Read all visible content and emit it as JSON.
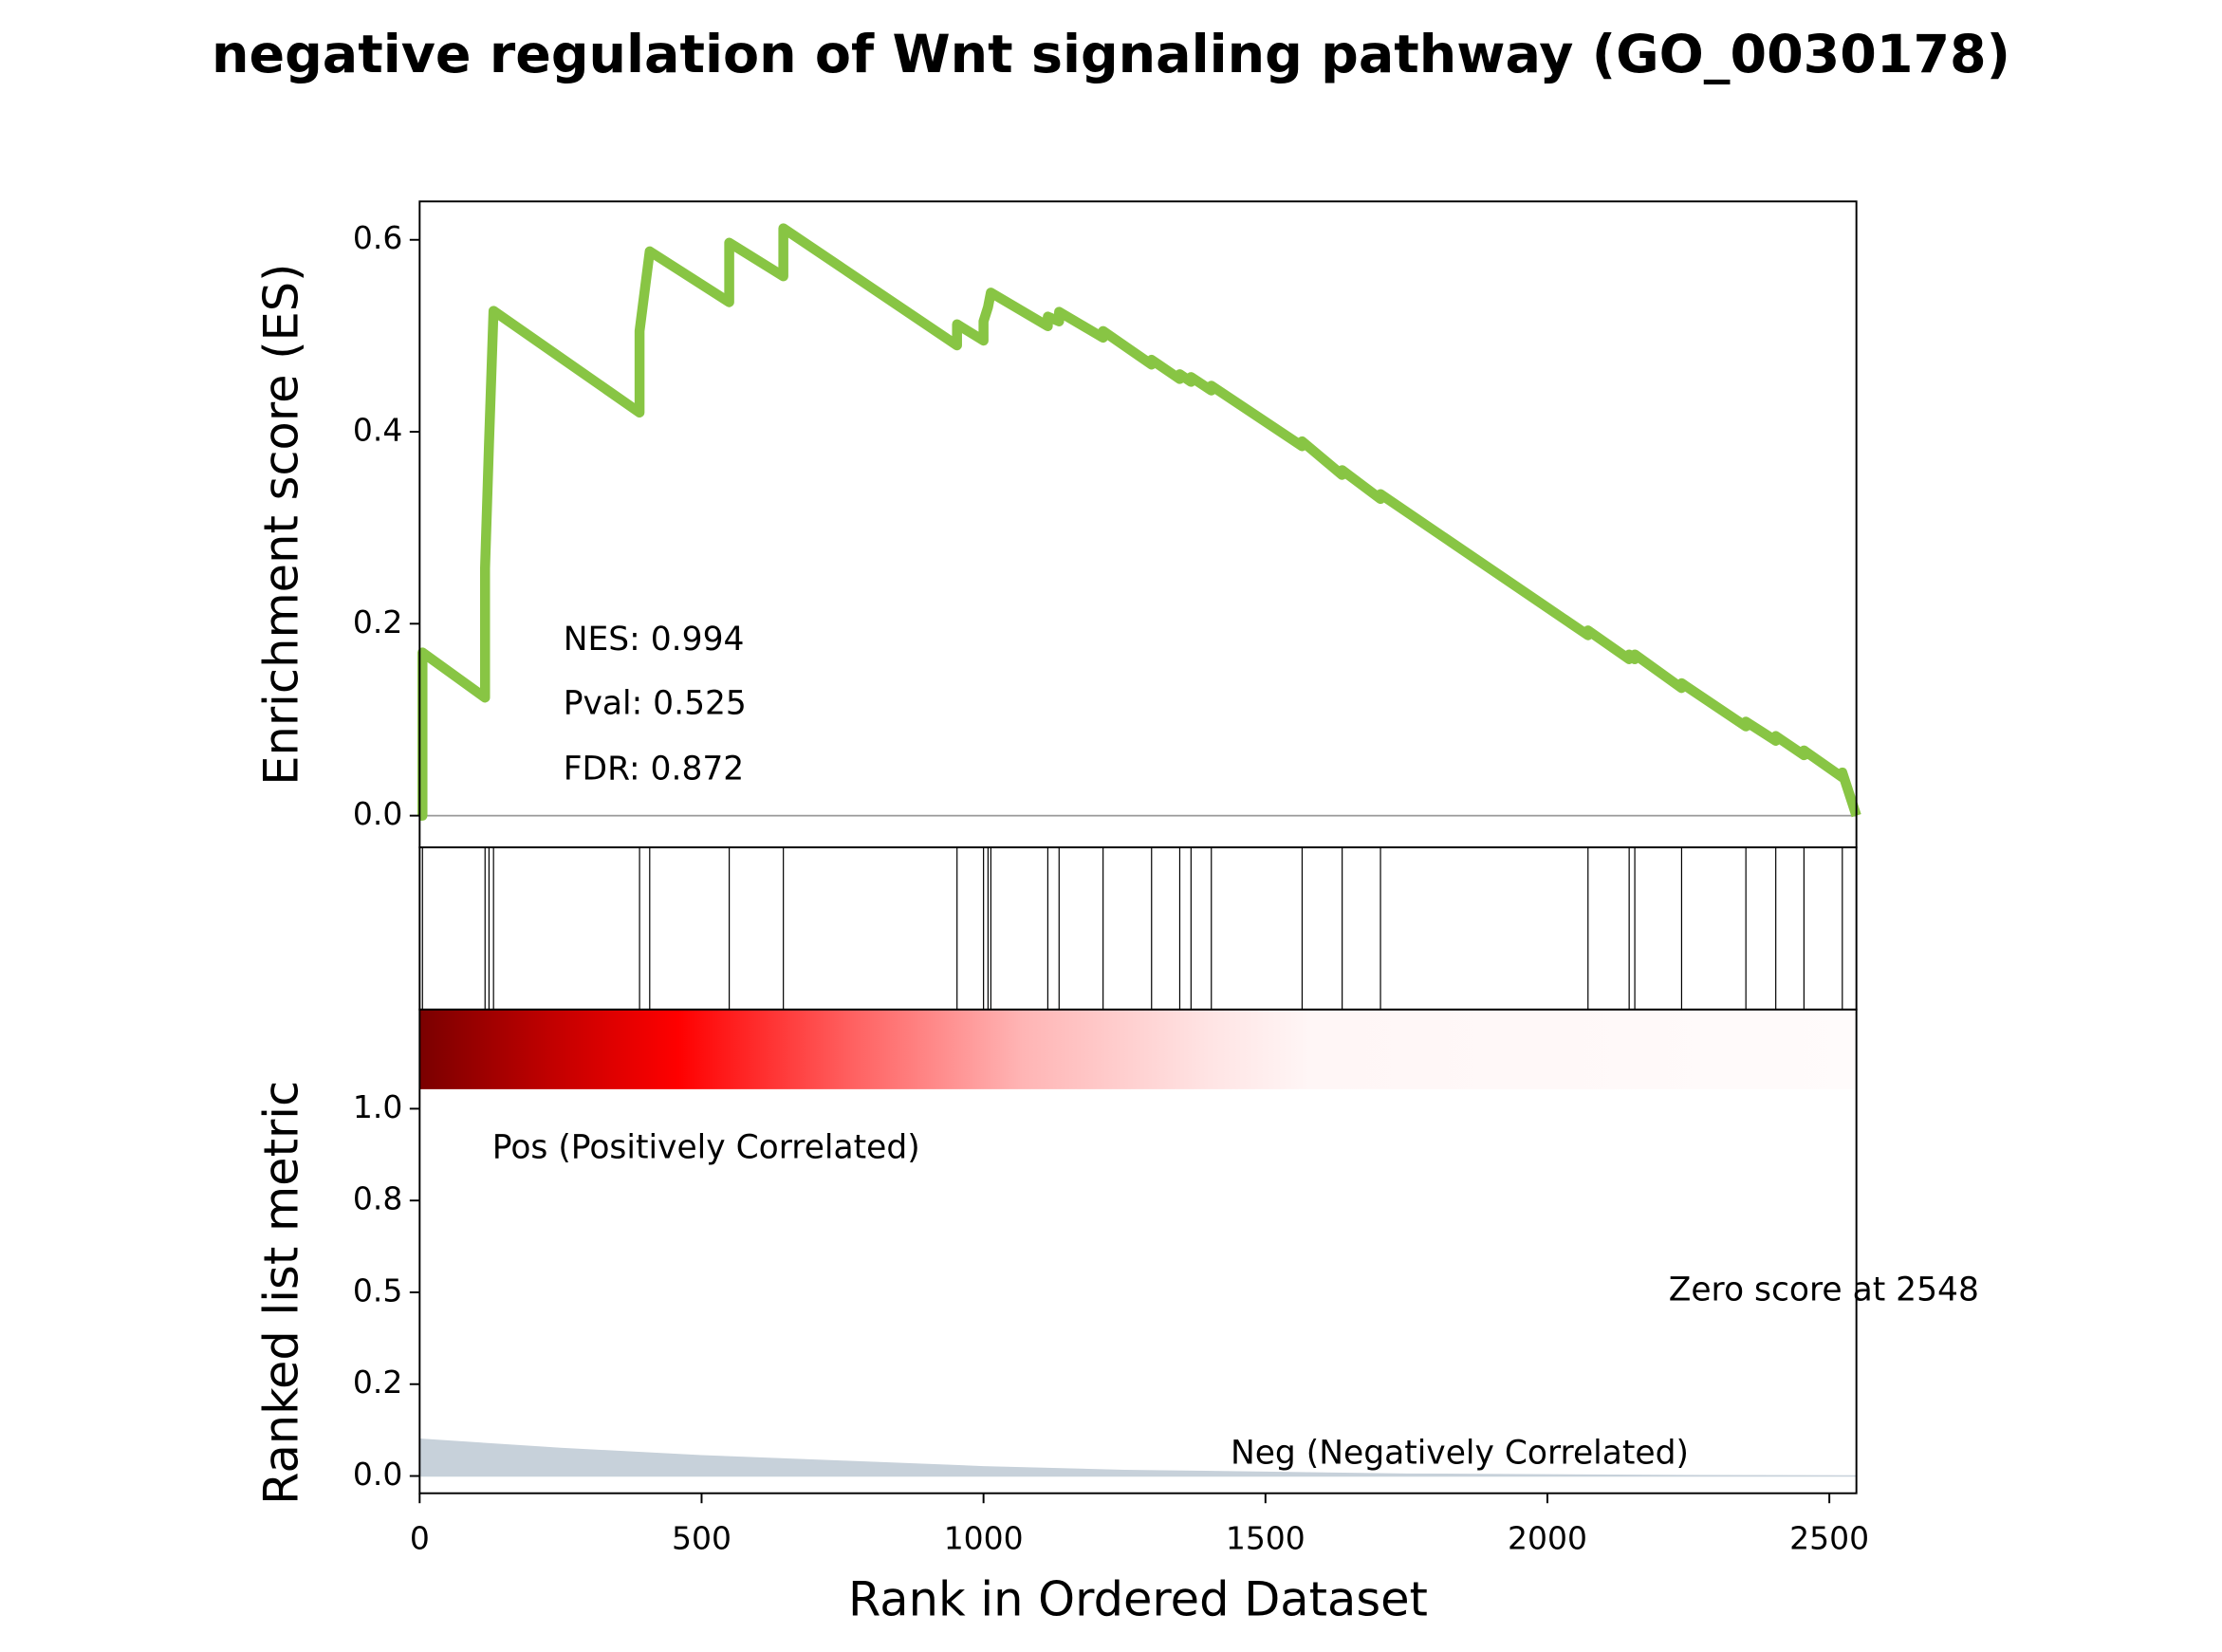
{
  "chart_data": [
    {
      "type": "line",
      "title": "negative regulation of Wnt signaling pathway (GO_0030178)",
      "ylabel": "Enrichment score (ES)",
      "color": "#88c544",
      "x": [
        0,
        5,
        5,
        116,
        116,
        123,
        131,
        390,
        390,
        408,
        549,
        549,
        645,
        645,
        953,
        953,
        1000,
        1000,
        1008,
        1013,
        1114,
        1114,
        1134,
        1134,
        1212,
        1212,
        1298,
        1298,
        1348,
        1348,
        1368,
        1368,
        1404,
        1404,
        1565,
        1565,
        1636,
        1636,
        1704,
        1704,
        2072,
        2072,
        2145,
        2145,
        2155,
        2155,
        2238,
        2238,
        2352,
        2352,
        2405,
        2405,
        2455,
        2455,
        2523,
        2523,
        2548
      ],
      "values": [
        0,
        0,
        0.17,
        0.123,
        0.258,
        0.388,
        0.526,
        0.42,
        0.505,
        0.588,
        0.535,
        0.597,
        0.562,
        0.612,
        0.49,
        0.512,
        0.495,
        0.515,
        0.53,
        0.545,
        0.51,
        0.52,
        0.515,
        0.525,
        0.498,
        0.505,
        0.47,
        0.475,
        0.455,
        0.46,
        0.452,
        0.457,
        0.443,
        0.448,
        0.385,
        0.39,
        0.355,
        0.36,
        0.33,
        0.335,
        0.188,
        0.193,
        0.163,
        0.168,
        0.163,
        0.168,
        0.133,
        0.138,
        0.093,
        0.098,
        0.078,
        0.083,
        0.063,
        0.068,
        0.04,
        0.045,
        0
      ],
      "hits": [
        5,
        116,
        123,
        131,
        390,
        408,
        549,
        645,
        953,
        1000,
        1008,
        1013,
        1114,
        1134,
        1212,
        1298,
        1348,
        1368,
        1404,
        1565,
        1636,
        1704,
        2072,
        2145,
        2155,
        2238,
        2352,
        2405,
        2455,
        2523
      ],
      "xlim": [
        0,
        2548
      ],
      "ylim": [
        -0.033,
        0.64
      ],
      "yticks": [
        {
          "value": 0,
          "label": "0.0"
        },
        0.2,
        0.4,
        0.6
      ],
      "annotations": [
        "NES: 0.994",
        "Pval: 0.525",
        "FDR: 0.872"
      ]
    },
    {
      "type": "area",
      "ylabel": "Ranked list metric",
      "xlabel": "Rank in Ordered Dataset",
      "color": "#c7d1da",
      "x": [
        0,
        250,
        500,
        750,
        1000,
        1250,
        1500,
        1750,
        2000,
        2250,
        2548
      ],
      "values": [
        0.1,
        0.075,
        0.055,
        0.04,
        0.025,
        0.015,
        0.01,
        0.005,
        0.003,
        0.001,
        0
      ],
      "xlim": [
        0,
        2548
      ],
      "ylim": [
        -0.047,
        1.27
      ],
      "xticks": [
        0,
        500,
        1000,
        1500,
        2000,
        2500
      ],
      "yticks": [
        {
          "value": 0,
          "label": "0.0"
        },
        {
          "value": 0.25,
          "label": "0.2"
        },
        0.5,
        {
          "value": 0.75,
          "label": "0.8"
        },
        {
          "value": 1,
          "label": "1.0"
        }
      ],
      "pos_label": "Pos (Positively Correlated)",
      "pos_color": "#ff0000",
      "neg_label": "Neg (Negatively Correlated)",
      "neg_color": "#0000ff",
      "zero_label": "Zero score at 2548"
    }
  ]
}
